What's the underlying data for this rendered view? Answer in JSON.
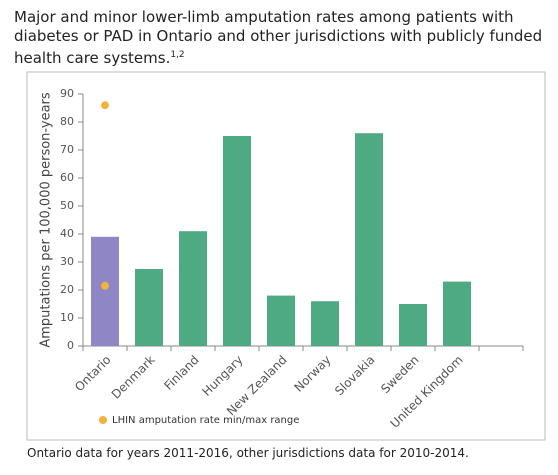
{
  "chart_data": {
    "type": "bar",
    "title": "Major and minor lower-limb amputation rates among patients with diabetes or PAD in Ontario and other jurisdictions with publicly funded health care systems.",
    "title_superscript": "1,2",
    "y_label": "Amputations per 100,000 person-years",
    "categories": [
      "Ontario",
      "Denmark",
      "Finland",
      "Hungary",
      "New Zealand",
      "Norway",
      "Slovakia",
      "Sweden",
      "United Kingdom"
    ],
    "values": [
      39,
      27.5,
      41,
      75,
      18,
      16,
      76,
      15,
      23
    ],
    "colors": [
      "#8e86c5",
      "#4eaa82",
      "#4eaa82",
      "#4eaa82",
      "#4eaa82",
      "#4eaa82",
      "#4eaa82",
      "#4eaa82",
      "#4eaa82"
    ],
    "range_markers": {
      "name": "LHIN amputation rate min/max range",
      "color": "#f2b33d",
      "min": 21.5,
      "max": 86
    },
    "ylim": [
      0,
      90
    ],
    "yticks": [
      0,
      10,
      20,
      30,
      40,
      50,
      60,
      70,
      80,
      90
    ],
    "footnote": "Ontario data for years 2011-2016, other jurisdictions data for 2010-2014."
  }
}
